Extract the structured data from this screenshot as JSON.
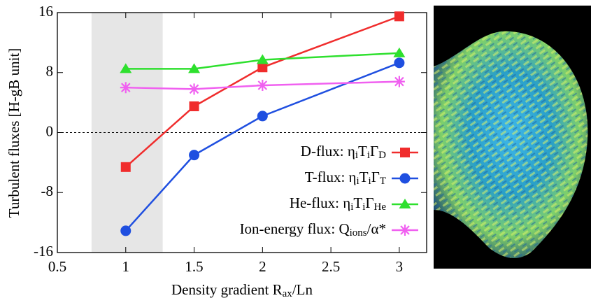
{
  "chart_data": {
    "type": "line",
    "ylabel": "Turbulent fluxes  [H-gB unit]",
    "xlabel": [
      "Density gradient  R",
      "ax",
      "/Ln"
    ],
    "x": [
      1,
      1.5,
      2,
      3
    ],
    "series": [
      {
        "name": [
          "D-flux: η",
          "i",
          "T",
          "i",
          "Γ",
          "D"
        ],
        "color": "#f02c2c",
        "marker": "square",
        "values": [
          -4.6,
          3.5,
          8.7,
          15.5
        ]
      },
      {
        "name": [
          "T-flux: η",
          "i",
          "T",
          "i",
          "Γ",
          "T"
        ],
        "color": "#1f4fe0",
        "marker": "circle",
        "values": [
          -13.1,
          -3.0,
          2.2,
          9.3
        ]
      },
      {
        "name": [
          "He-flux: η",
          "i",
          "T",
          "i",
          "Γ",
          "He"
        ],
        "color": "#2ee02e",
        "marker": "triangle",
        "values": [
          8.5,
          8.5,
          9.7,
          10.6
        ]
      },
      {
        "name": [
          "Ion-energy flux: Q",
          "ions",
          "/α*"
        ],
        "color": "#f060f0",
        "marker": "star",
        "values": [
          6.0,
          5.8,
          6.3,
          6.8
        ]
      }
    ],
    "shaded_range": [
      0.75,
      1.27
    ],
    "zero_line": true,
    "xlim": [
      0.5,
      3.2
    ],
    "xticks": [
      0.5,
      1,
      1.5,
      2,
      2.5,
      3
    ],
    "ylim": [
      -16,
      16
    ],
    "yticks": [
      16,
      8,
      0,
      -8,
      -16
    ]
  }
}
